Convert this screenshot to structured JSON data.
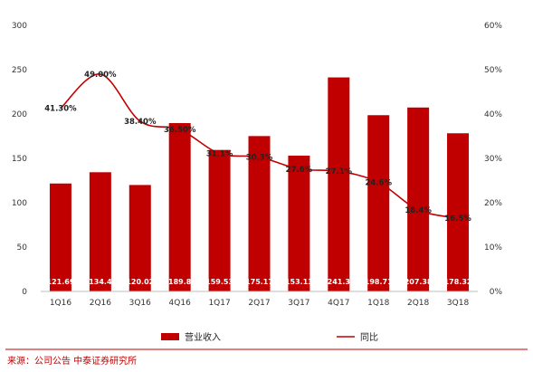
{
  "chart_data": {
    "type": "bar",
    "categories": [
      "1Q16",
      "2Q16",
      "3Q16",
      "4Q16",
      "1Q17",
      "2Q17",
      "3Q17",
      "4Q17",
      "1Q18",
      "2Q18",
      "3Q18"
    ],
    "series": [
      {
        "name": "营业收入",
        "type": "bar",
        "axis": "left",
        "color": "#c00000",
        "values": [
          121.69,
          134.4,
          120.02,
          189.8,
          159.53,
          175.17,
          153.13,
          241.3,
          198.71,
          207.38,
          178.32
        ],
        "labels": [
          "121.69",
          "134.4",
          "120.02",
          "189.8",
          "159.53",
          "175.17",
          "153.13",
          "241.3",
          "198.71",
          "207.38",
          "178.32"
        ]
      },
      {
        "name": "同比",
        "type": "line",
        "axis": "right",
        "color": "#c00000",
        "values": [
          41.3,
          49.0,
          38.4,
          36.5,
          31.1,
          30.3,
          27.6,
          27.1,
          24.6,
          18.4,
          16.5
        ],
        "labels": [
          "41.30%",
          "49.00%",
          "38.40%",
          "36.50%",
          "31.1%",
          "30.3%",
          "27.6%",
          "27.1%",
          "24.6%",
          "18.4%",
          "16.5%"
        ]
      }
    ],
    "y_left": {
      "ylim": [
        0,
        300
      ],
      "ticks": [
        "0",
        "50",
        "100",
        "150",
        "200",
        "250",
        "300"
      ]
    },
    "y_right": {
      "ylim": [
        0,
        60
      ],
      "ticks": [
        "0%",
        "10%",
        "20%",
        "30%",
        "40%",
        "50%",
        "60%"
      ]
    },
    "legend_position": "bottom",
    "grid": false
  },
  "source_text": "来源：公司公告 中泰证券研究所",
  "colors": {
    "bar": "#c00000",
    "line": "#c00000"
  }
}
